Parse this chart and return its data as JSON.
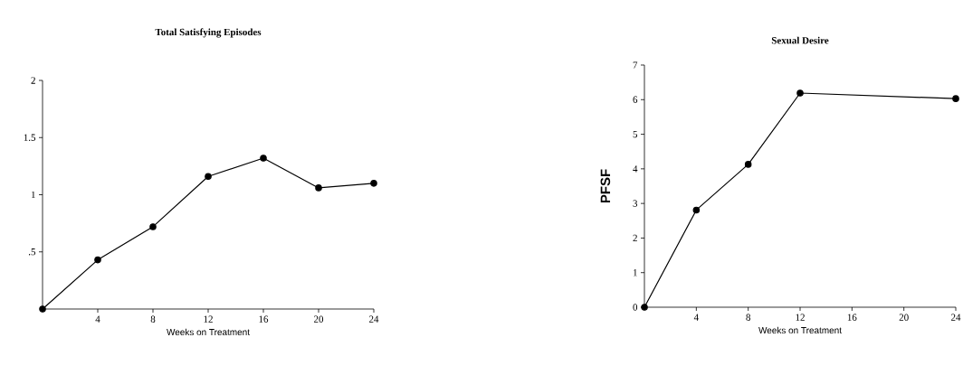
{
  "chart_data": [
    {
      "type": "line",
      "title": "Total Satisfying Episodes",
      "xlabel": "Weeks on Treatment",
      "x": [
        0,
        4,
        8,
        12,
        16,
        20,
        24
      ],
      "values": [
        0,
        0.43,
        0.72,
        1.16,
        1.32,
        1.06,
        1.1
      ],
      "color": "#000000",
      "marker": "circle",
      "line_style": "solid",
      "xlim": [
        0,
        24
      ],
      "ylim": [
        0,
        2
      ],
      "xticks": [
        4,
        8,
        12,
        16,
        20,
        24
      ],
      "yticks": [
        {
          "value": 0.5,
          "label": ".5"
        },
        1,
        1.5,
        2
      ]
    },
    {
      "type": "line",
      "title": "Sexual Desire",
      "xlabel": "Weeks on Treatment",
      "ylabel": "PFSF",
      "x": [
        0,
        4,
        8,
        12,
        24
      ],
      "values": [
        0,
        2.81,
        4.13,
        6.19,
        6.03
      ],
      "color": "#000000",
      "marker": "circle",
      "line_style": "solid",
      "xlim": [
        0,
        24
      ],
      "ylim": [
        0,
        7
      ],
      "xticks": [
        4,
        8,
        12,
        16,
        20,
        24
      ],
      "yticks": [
        0,
        1,
        2,
        3,
        4,
        5,
        6,
        7
      ]
    }
  ]
}
